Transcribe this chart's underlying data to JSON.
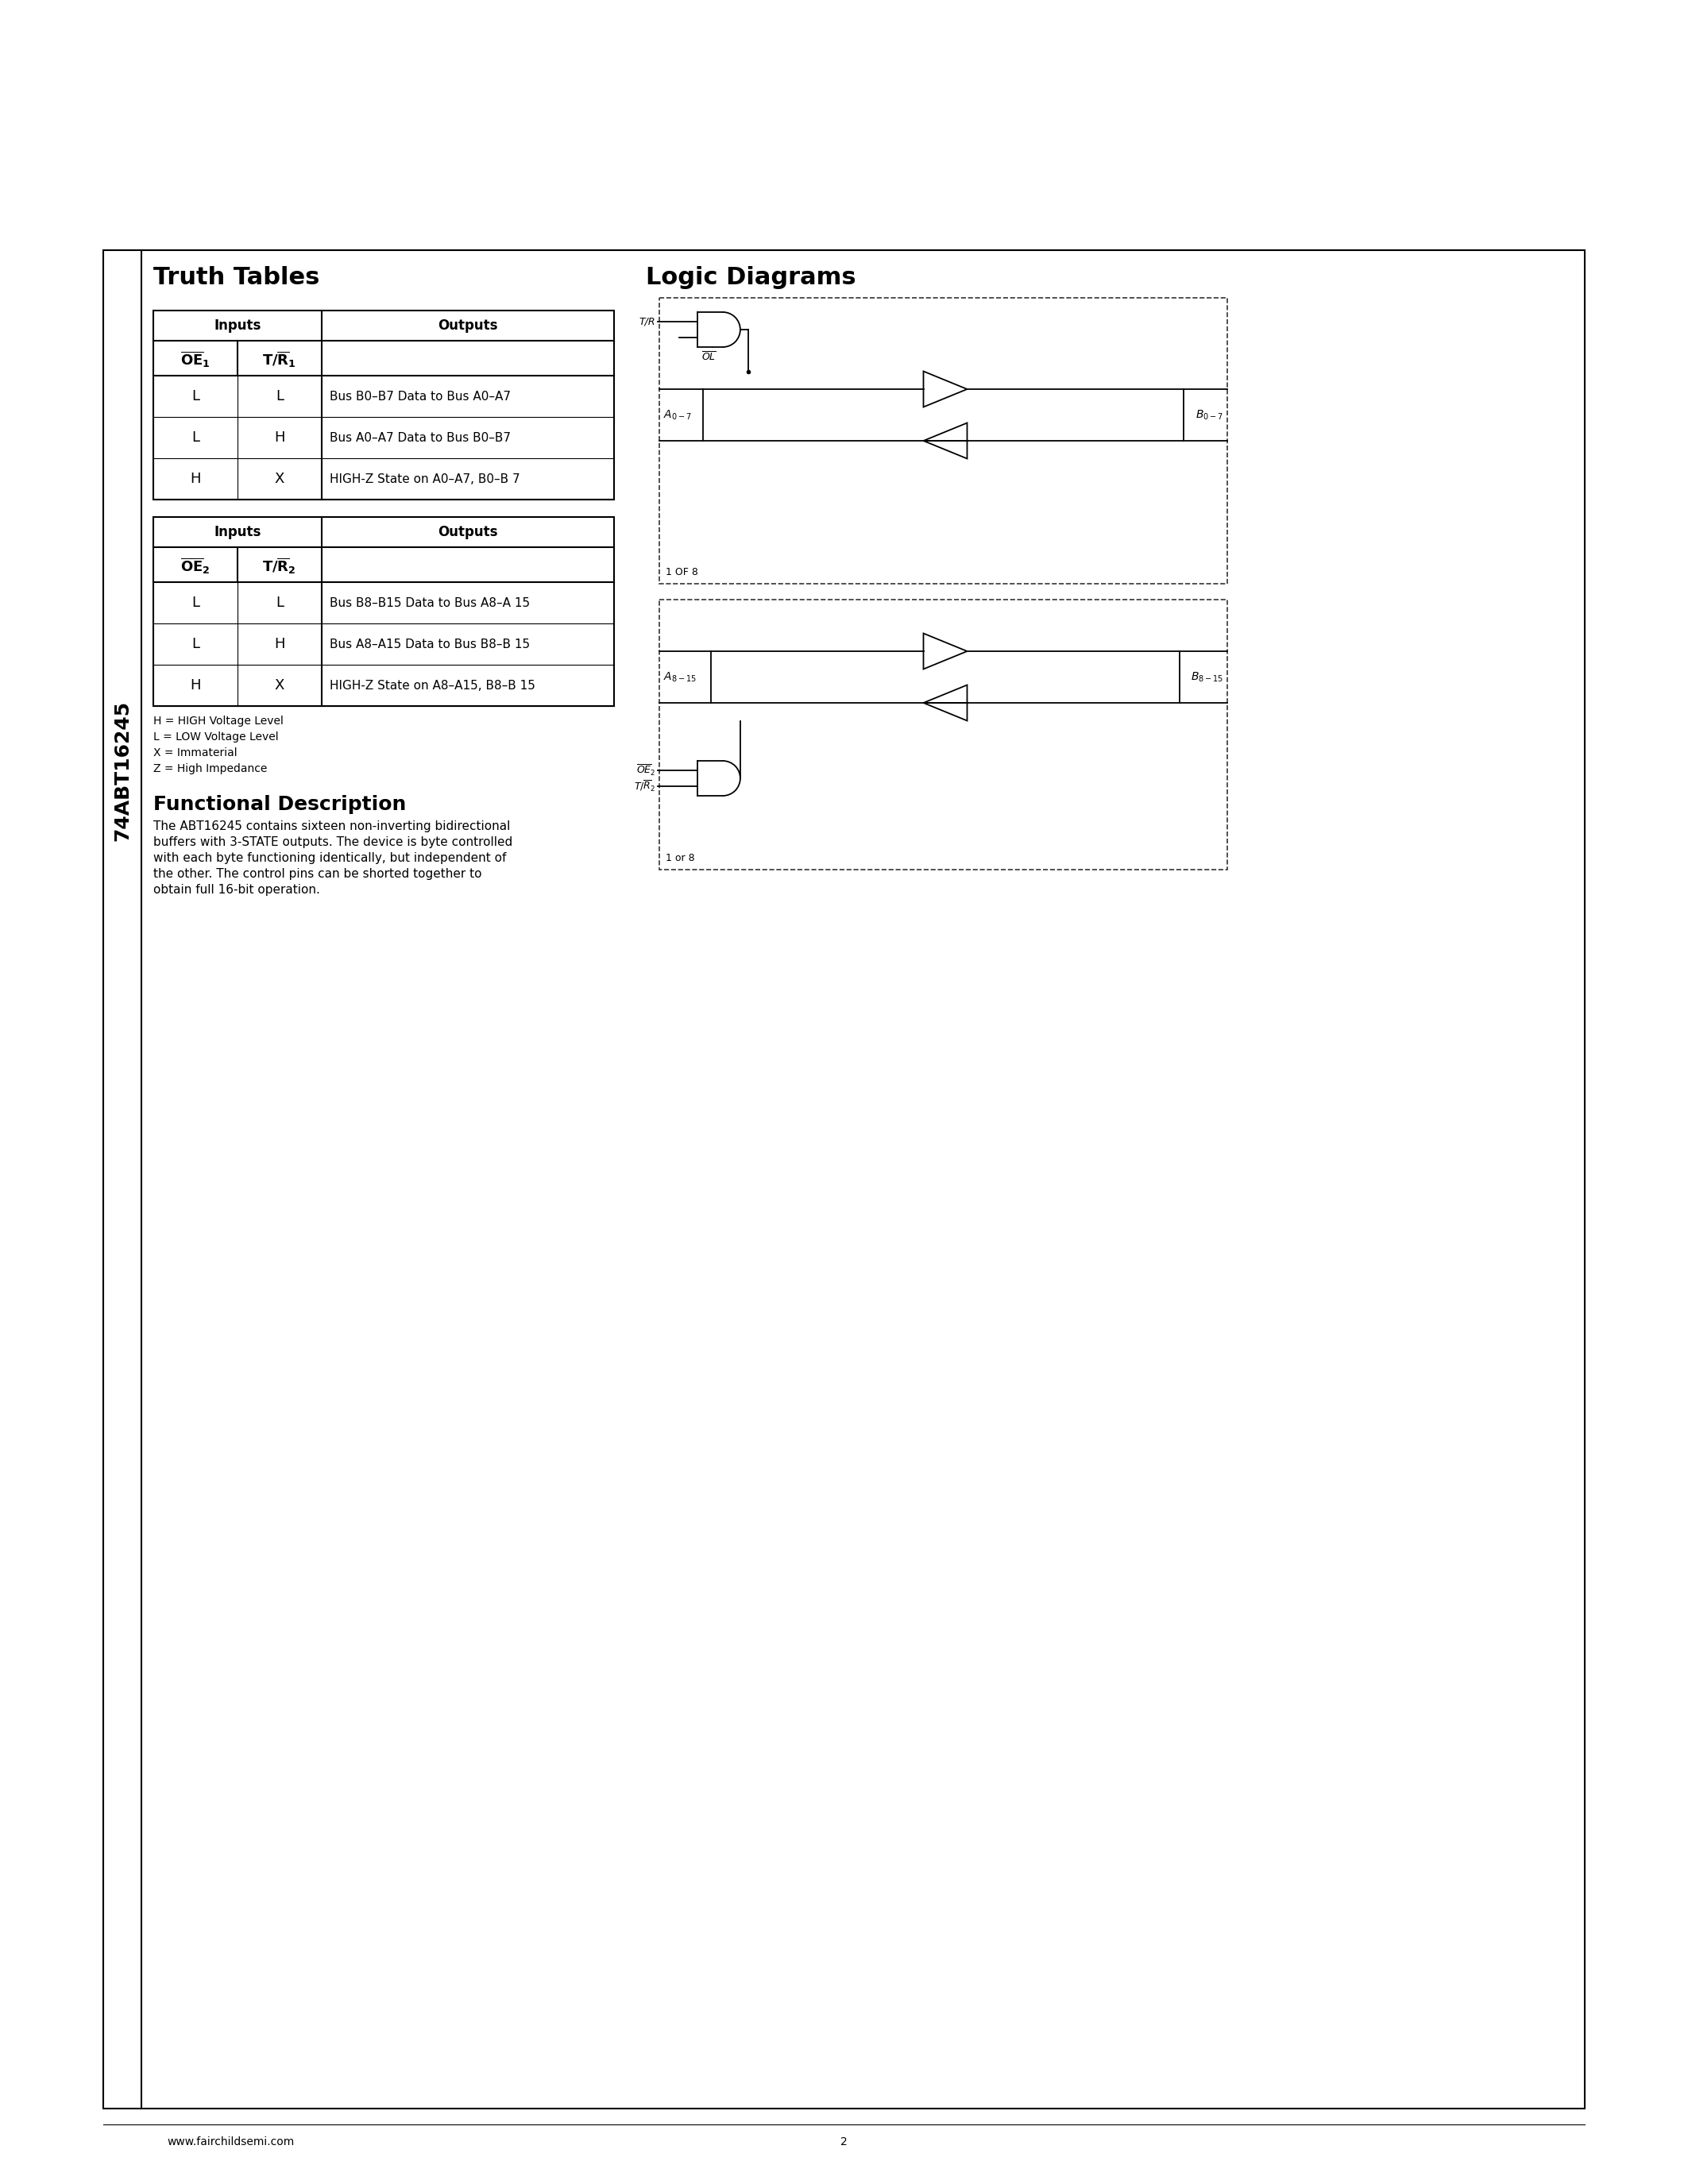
{
  "page_bg": "#ffffff",
  "border_color": "#000000",
  "side_label": "74ABT16245",
  "section_truth": "Truth Tables",
  "section_logic": "Logic Diagrams",
  "t1_header": [
    "Inputs",
    "Outputs"
  ],
  "t1_col_headers": [
    "OE1_bar",
    "T_R1_bar"
  ],
  "t1_rows": [
    [
      "L",
      "L",
      "Bus B0–B7 Data to Bus A0–A7"
    ],
    [
      "L",
      "H",
      "Bus A0–A7 Data to Bus B0–B7"
    ],
    [
      "H",
      "X",
      "HIGH-Z State on A0–A7, B0–B 7"
    ]
  ],
  "t2_col_headers": [
    "OE2_bar",
    "T_R2_bar"
  ],
  "t2_rows": [
    [
      "L",
      "L",
      "Bus B8–B15 Data to Bus A8–A 15"
    ],
    [
      "L",
      "H",
      "Bus A8–A15 Data to Bus B8–B 15"
    ],
    [
      "H",
      "X",
      "HIGH-Z State on A8–A15, B8–B 15"
    ]
  ],
  "legend_lines": [
    "H = HIGH Voltage Level",
    "L = LOW Voltage Level",
    "X = Immaterial",
    "Z = High Impedance"
  ],
  "func_title": "Functional Description",
  "func_body": "The ABT16245 contains sixteen non-inverting bidirectional\nbuffers with 3-STATE outputs. The device is byte controlled\nwith each byte functioning identically, but independent of\nthe other. The control pins can be shorted together to\nobtain full 16-bit operation.",
  "footer_left": "www.fairchildsemi.com",
  "footer_page": "2"
}
